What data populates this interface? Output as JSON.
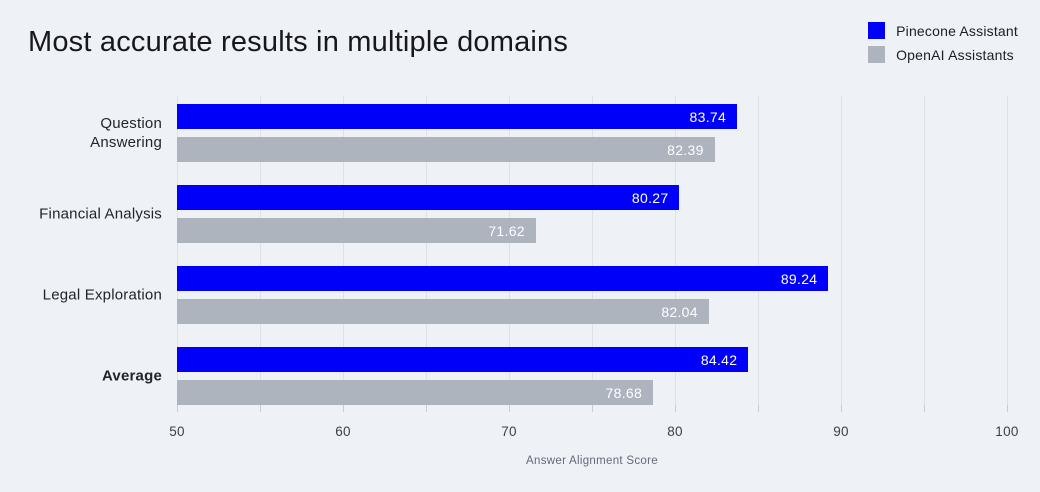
{
  "title": "Most accurate results in multiple domains",
  "chart_data": {
    "type": "bar",
    "orientation": "horizontal",
    "title": "Most accurate results in multiple domains",
    "categories": [
      "Question Answering",
      "Financial Analysis",
      "Legal Exploration",
      "Average"
    ],
    "bold_categories": [
      "Average"
    ],
    "series": [
      {
        "name": "Pinecone Assistant",
        "color": "#0000fa",
        "values": [
          83.74,
          80.27,
          89.24,
          84.42
        ]
      },
      {
        "name": "OpenAI Assistants",
        "color": "#adb4bd",
        "values": [
          82.39,
          71.62,
          82.04,
          78.68
        ]
      }
    ],
    "xlabel": "Answer Alignment Score",
    "xlim": [
      50,
      100
    ],
    "xticks": [
      50,
      60,
      70,
      80,
      90,
      100
    ],
    "grid_interval": 5,
    "grid": true,
    "legend_position": "top-right",
    "value_labels": "inside-end"
  },
  "colors": {
    "background": "#eef1f6",
    "gridline": "#dde0e7",
    "tick": "#c7ccd4",
    "title_text": "#16181d",
    "category_text": "#22242c",
    "value_text": "#ffffff",
    "axis_label_text": "#63697a"
  }
}
